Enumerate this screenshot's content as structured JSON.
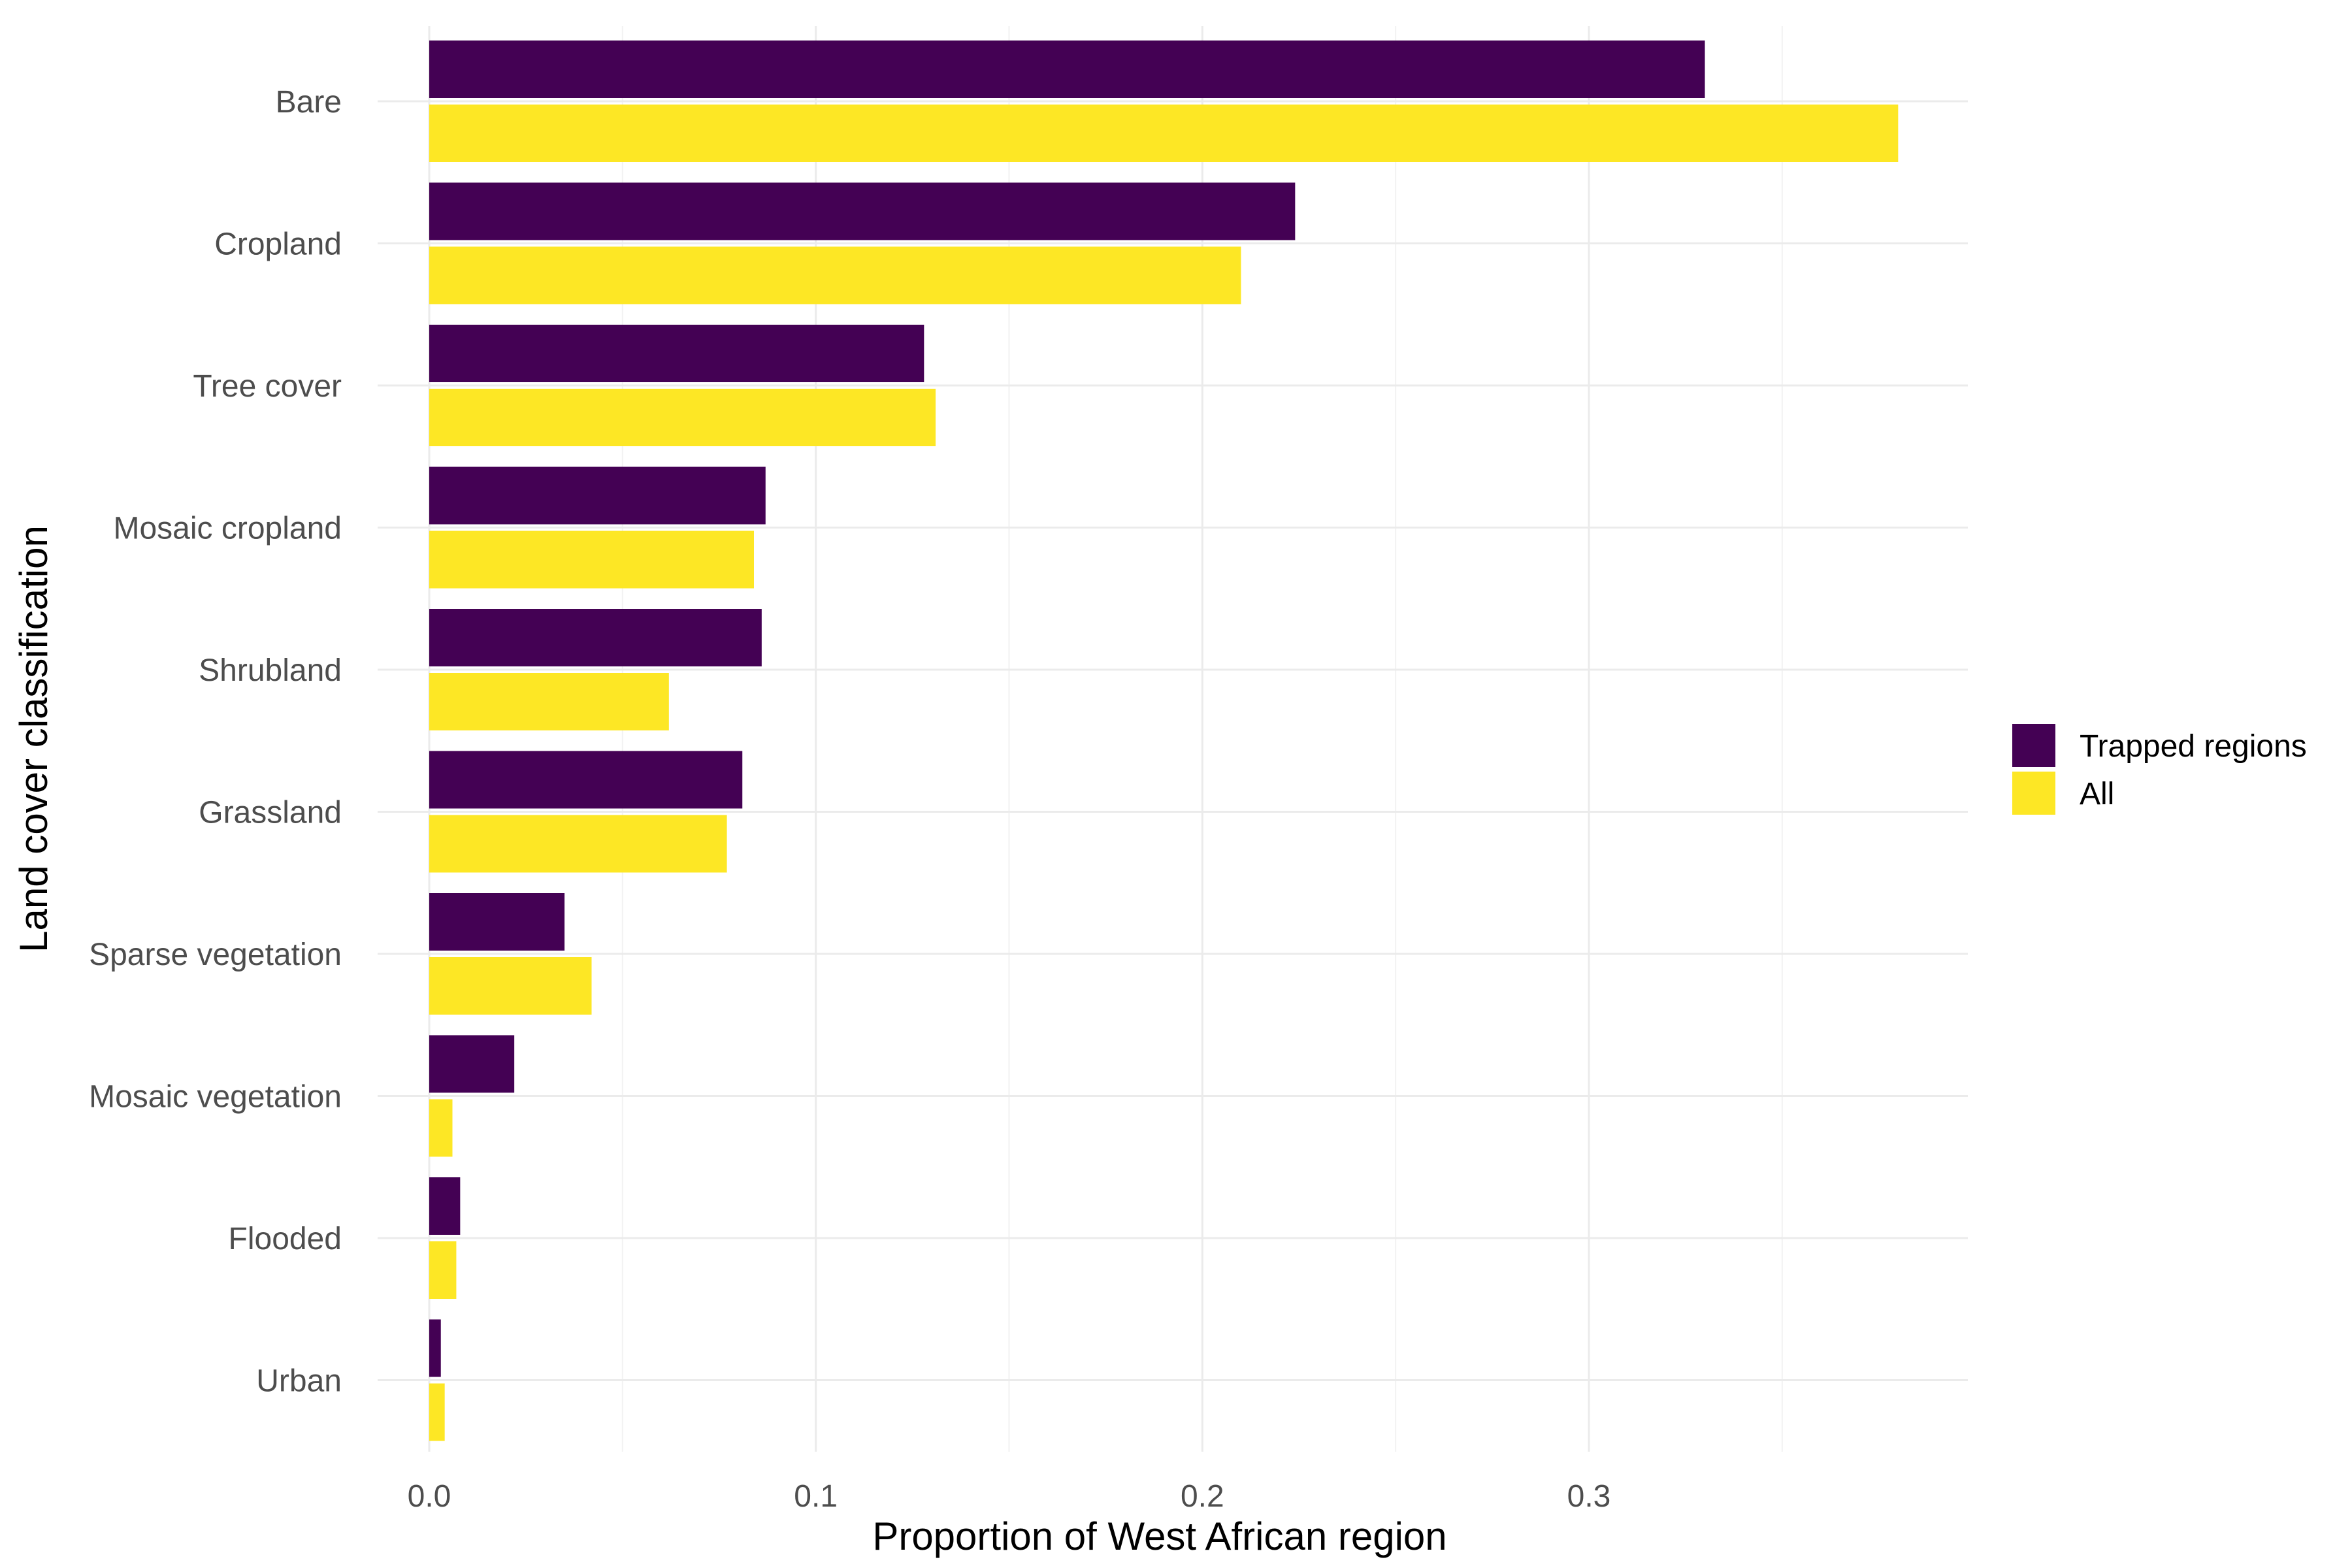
{
  "chart_data": {
    "type": "bar",
    "orientation": "horizontal",
    "xlabel": "Proportion of West African region",
    "ylabel": "Land cover classification",
    "categories": [
      "Bare",
      "Cropland",
      "Tree cover",
      "Mosaic cropland",
      "Shrubland",
      "Grassland",
      "Sparse vegetation",
      "Mosaic vegetation",
      "Flooded",
      "Urban"
    ],
    "series": [
      {
        "name": "Trapped regions",
        "color": "#440154",
        "values": [
          0.33,
          0.224,
          0.128,
          0.087,
          0.086,
          0.081,
          0.035,
          0.022,
          0.008,
          0.003
        ]
      },
      {
        "name": "All",
        "color": "#FDE725",
        "values": [
          0.38,
          0.21,
          0.131,
          0.084,
          0.062,
          0.077,
          0.042,
          0.006,
          0.007,
          0.004
        ]
      }
    ],
    "xlim": [
      0,
      0.399
    ],
    "xticks": [
      0.0,
      0.1,
      0.2,
      0.3
    ],
    "xtick_labels": [
      "0.0",
      "0.1",
      "0.2",
      "0.3"
    ],
    "grid": true,
    "legend_position": "right"
  }
}
